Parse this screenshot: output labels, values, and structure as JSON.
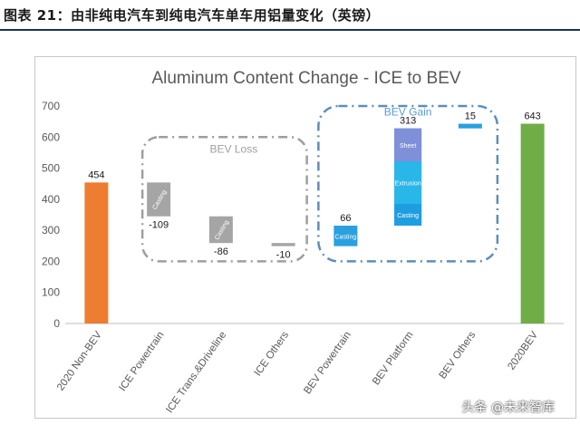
{
  "caption": "图表 21：由非纯电汽车到纯电汽车单车用铝量变化（英镑）",
  "watermark": "头条 @未来智库",
  "colors": {
    "orange": "#ed7d31",
    "gray": "#a5a5a5",
    "blue": "#2aa0e0",
    "blue_light": "#6bc3f0",
    "green": "#70ad47",
    "loss_box": "#9e9e9e",
    "gain_box": "#5b8fb9",
    "caption_rule": "#1a2f5a"
  },
  "chart_data": {
    "type": "waterfall-bar",
    "title": "Aluminum Content Change - ICE to BEV",
    "categories": [
      "2020 Non-BEV",
      "ICE Powertrain",
      "ICE Trans.&Driveline",
      "ICE Others",
      "BEV Powertrain",
      "BEV Platform",
      "BEV Others",
      "2020BEV"
    ],
    "ylim": [
      0,
      700
    ],
    "yticks": [
      0,
      100,
      200,
      300,
      400,
      500,
      600,
      700
    ],
    "grid": false,
    "bars": [
      {
        "category": "2020 Non-BEV",
        "base": 0,
        "top": 454,
        "label": "454",
        "color": "orange",
        "segments": []
      },
      {
        "category": "ICE Powertrain",
        "base": 345,
        "top": 454,
        "label": "-109",
        "color": "gray",
        "segments": [
          {
            "name": "Casting",
            "from": 345,
            "to": 454,
            "color": "gray"
          }
        ]
      },
      {
        "category": "ICE Trans.&Driveline",
        "base": 259,
        "top": 345,
        "label": "-86",
        "color": "gray",
        "segments": [
          {
            "name": "Casting",
            "from": 259,
            "to": 345,
            "color": "gray"
          }
        ]
      },
      {
        "category": "ICE Others",
        "base": 249,
        "top": 259,
        "label": "-10",
        "color": "gray",
        "segments": []
      },
      {
        "category": "BEV Powertrain",
        "base": 249,
        "top": 315,
        "label": "66",
        "color": "blue",
        "segments": [
          {
            "name": "Casting",
            "from": 249,
            "to": 315,
            "color": "blue"
          }
        ]
      },
      {
        "category": "BEV Platform",
        "base": 315,
        "top": 628,
        "label": "313",
        "color": "blue",
        "segments": [
          {
            "name": "Casting",
            "from": 315,
            "to": 385,
            "color": "blue"
          },
          {
            "name": "Extrusion",
            "from": 385,
            "to": 522,
            "color": "blue"
          },
          {
            "name": "Sheet",
            "from": 522,
            "to": 628,
            "color": "blue_light"
          }
        ]
      },
      {
        "category": "BEV Others",
        "base": 628,
        "top": 643,
        "label": "15",
        "color": "blue",
        "segments": []
      },
      {
        "category": "2020BEV",
        "base": 0,
        "top": 643,
        "label": "643",
        "color": "green",
        "segments": []
      }
    ],
    "annotations": {
      "loss_group": "BEV Loss",
      "gain_group": "BEV Gain"
    }
  }
}
